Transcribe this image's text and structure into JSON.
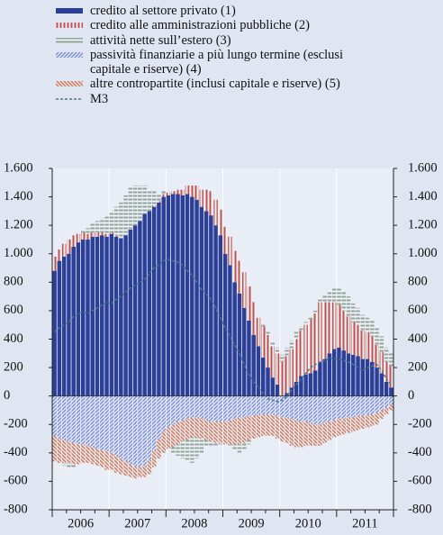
{
  "chart_data": {
    "type": "stacked-bar-line",
    "categories": [
      null,
      null,
      null,
      null,
      null,
      null,
      "2006",
      null,
      null,
      null,
      null,
      null,
      null,
      null,
      null,
      null,
      null,
      null,
      "2007",
      null,
      null,
      null,
      null,
      null,
      null,
      null,
      null,
      null,
      null,
      null,
      "2008",
      null,
      null,
      null,
      null,
      null,
      null,
      null,
      null,
      null,
      null,
      null,
      "2009",
      null,
      null,
      null,
      null,
      null,
      null,
      null,
      null,
      null,
      null,
      null,
      "2010",
      null,
      null,
      null,
      null,
      null,
      null,
      null,
      null,
      null,
      null,
      null,
      "2011",
      null,
      null,
      null,
      null,
      null
    ],
    "series": [
      {
        "name": "credito al settore privato (1)",
        "color": "#2b3f98",
        "pattern": "solid",
        "values": [
          880,
          950,
          980,
          1000,
          1050,
          1080,
          1100,
          1100,
          1120,
          1120,
          1130,
          1120,
          1140,
          1120,
          1110,
          1130,
          1170,
          1200,
          1230,
          1280,
          1300,
          1330,
          1360,
          1400,
          1410,
          1420,
          1420,
          1410,
          1420,
          1400,
          1380,
          1330,
          1300,
          1270,
          1200,
          1130,
          1000,
          920,
          800,
          720,
          620,
          530,
          430,
          350,
          270,
          200,
          130,
          80,
          0,
          20,
          60,
          100,
          140,
          150,
          160,
          180,
          240,
          260,
          300,
          330,
          340,
          320,
          300,
          290,
          280,
          260,
          260,
          240,
          200,
          160,
          100,
          60
        ]
      },
      {
        "name": "credito alle amministrazioni pubbliche (2)",
        "color": "#c0504d",
        "pattern": "vertical",
        "values": [
          100,
          80,
          90,
          100,
          80,
          60,
          50,
          40,
          30,
          30,
          20,
          20,
          10,
          10,
          0,
          0,
          0,
          0,
          0,
          0,
          0,
          10,
          10,
          20,
          20,
          20,
          30,
          40,
          60,
          80,
          100,
          120,
          150,
          170,
          180,
          180,
          190,
          200,
          220,
          230,
          250,
          240,
          230,
          200,
          220,
          230,
          220,
          220,
          240,
          260,
          270,
          300,
          320,
          350,
          380,
          400,
          420,
          400,
          360,
          330,
          300,
          280,
          260,
          230,
          220,
          200,
          190,
          180,
          160,
          150,
          140,
          150
        ]
      },
      {
        "name": "attività nette sull’estero (3)",
        "color": "#8fa39b",
        "pattern": "horizontal",
        "values": [
          0,
          0,
          -20,
          -40,
          -30,
          0,
          20,
          40,
          60,
          80,
          100,
          120,
          150,
          200,
          250,
          280,
          300,
          280,
          250,
          200,
          150,
          100,
          50,
          20,
          0,
          -50,
          -80,
          -120,
          -150,
          -180,
          -150,
          -100,
          -50,
          -30,
          -20,
          -10,
          0,
          -20,
          -40,
          -60,
          -50,
          -30,
          -10,
          0,
          10,
          20,
          30,
          40,
          50,
          60,
          60,
          50,
          30,
          20,
          10,
          20,
          30,
          50,
          80,
          100,
          120,
          130,
          140,
          130,
          120,
          110,
          100,
          110,
          120,
          110,
          100,
          90
        ]
      },
      {
        "name": "passività finanziarie a più lungo termine (esclusi capitale e riserve) (4)",
        "color": "#7f93dc",
        "pattern": "diagonal",
        "values": [
          -280,
          -300,
          -310,
          -320,
          -330,
          -340,
          -340,
          -350,
          -360,
          -370,
          -380,
          -390,
          -400,
          -420,
          -440,
          -460,
          -480,
          -500,
          -500,
          -490,
          -450,
          -380,
          -300,
          -250,
          -220,
          -200,
          -180,
          -170,
          -160,
          -150,
          -150,
          -160,
          -170,
          -180,
          -180,
          -180,
          -180,
          -170,
          -160,
          -150,
          -150,
          -140,
          -140,
          -130,
          -130,
          -130,
          -130,
          -140,
          -150,
          -150,
          -160,
          -170,
          -180,
          -180,
          -190,
          -200,
          -200,
          -190,
          -180,
          -170,
          -160,
          -160,
          -150,
          -150,
          -140,
          -140,
          -130,
          -130,
          -120,
          -100,
          -80,
          -60
        ]
      },
      {
        "name": "altre contropartite (inclusi capitale e riserve) (5)",
        "color": "#cc7f66",
        "pattern": "diagonal-back",
        "values": [
          -180,
          -170,
          -160,
          -150,
          -150,
          -140,
          -130,
          -120,
          -120,
          -120,
          -120,
          -130,
          -120,
          -120,
          -110,
          -100,
          -90,
          -80,
          -70,
          -80,
          -100,
          -120,
          -140,
          -150,
          -150,
          -160,
          -160,
          -150,
          -150,
          -140,
          -140,
          -140,
          -140,
          -140,
          -150,
          -150,
          -160,
          -170,
          -180,
          -190,
          -180,
          -170,
          -160,
          -160,
          -150,
          -150,
          -150,
          -160,
          -170,
          -180,
          -190,
          -190,
          -180,
          -170,
          -160,
          -150,
          -150,
          -140,
          -130,
          -120,
          -120,
          -110,
          -110,
          -100,
          -100,
          -90,
          -90,
          -80,
          -80,
          -60,
          -50,
          -40
        ]
      },
      {
        "name": "M3",
        "color": "#4a7a8c",
        "kind": "line",
        "values": [
          450,
          480,
          500,
          520,
          560,
          580,
          590,
          580,
          600,
          620,
          640,
          660,
          650,
          680,
          700,
          730,
          760,
          780,
          800,
          820,
          860,
          900,
          920,
          950,
          960,
          950,
          940,
          920,
          880,
          850,
          800,
          750,
          720,
          680,
          620,
          550,
          480,
          420,
          360,
          300,
          220,
          150,
          100,
          60,
          20,
          -20,
          -30,
          -40,
          -30,
          0,
          40,
          80,
          120,
          160,
          200,
          220,
          240,
          250,
          270,
          260,
          260,
          250,
          240,
          220,
          200,
          180,
          200,
          210,
          220,
          180,
          120,
          80
        ]
      }
    ],
    "ylim": [
      -800,
      1600
    ],
    "yticks": [
      {
        "value": -800,
        "label": "-800"
      },
      -600,
      -400,
      -200,
      0,
      {
        "value": 200,
        "label": "200"
      },
      400,
      600,
      800,
      {
        "value": 1000,
        "label": "1.000"
      },
      {
        "value": 1200,
        "label": "1.200"
      },
      {
        "value": 1400,
        "label": "1.400"
      },
      {
        "value": 1600,
        "label": "1.600"
      }
    ],
    "grid": true
  }
}
